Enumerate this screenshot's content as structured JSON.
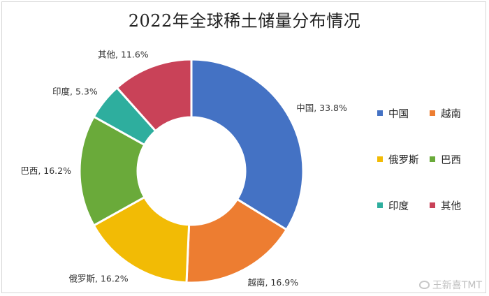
{
  "chart_data": {
    "type": "pie",
    "title": "2022年全球稀土储量分布情况",
    "categories": [
      "中国",
      "越南",
      "俄罗斯",
      "巴西",
      "印度",
      "其他"
    ],
    "values": [
      33.8,
      16.9,
      16.2,
      16.2,
      5.3,
      11.6
    ],
    "slice_labels": [
      "中国, 33.8%",
      "越南, 16.9%",
      "俄罗斯, 16.2%",
      "巴西, 16.2%",
      "印度, 5.3%",
      "其他, 11.6%"
    ],
    "colors": [
      "#4472C4",
      "#ED7D31",
      "#F2BB05",
      "#6AAA3A",
      "#2EAE9E",
      "#C94258"
    ],
    "donut": true,
    "legend_position": "right"
  },
  "legend": {
    "items": [
      {
        "label": "中国",
        "color": "#4472C4"
      },
      {
        "label": "越南",
        "color": "#ED7D31"
      },
      {
        "label": "俄罗斯",
        "color": "#F2BB05"
      },
      {
        "label": "巴西",
        "color": "#6AAA3A"
      },
      {
        "label": "印度",
        "color": "#2EAE9E"
      },
      {
        "label": "其他",
        "color": "#C94258"
      }
    ]
  },
  "watermark": {
    "text": "王新喜TMT",
    "icon": "weibo-icon"
  }
}
